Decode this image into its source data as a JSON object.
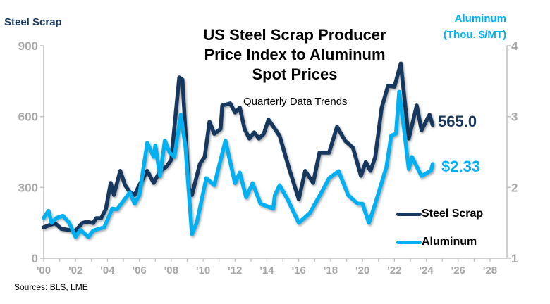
{
  "chart_data": {
    "type": "line",
    "title": "US Steel Scrap Producer Price Index to Aluminum Spot Prices",
    "subtitle": "Quarterly Data Trends",
    "source": "Sources: BLS, LME",
    "y_left": {
      "label": "Steel Scrap",
      "range": [
        0,
        900
      ],
      "ticks": [
        "0",
        "300",
        "600",
        "900"
      ]
    },
    "y_right": {
      "label_line1": "Aluminum",
      "label_line2": "(Thou. $/MT)",
      "range": [
        1,
        4
      ],
      "ticks": [
        "1",
        "2",
        "3",
        "4"
      ]
    },
    "x": {
      "range": [
        2000,
        2028
      ],
      "ticks": [
        "'00",
        "'02",
        "'04",
        "'06",
        "'08",
        "'10",
        "'12",
        "'14",
        "'16",
        "'18",
        "'20",
        "'22",
        "'24",
        "'26",
        "'28"
      ]
    },
    "grid": false,
    "legend": "bottom-right",
    "series": [
      {
        "name": "Steel Scrap",
        "axis": "left",
        "color": "#17375e",
        "end_label": "565.0",
        "points": [
          [
            2000,
            131
          ],
          [
            2000.7,
            149
          ],
          [
            2001.1,
            125
          ],
          [
            2001.7,
            119
          ],
          [
            2002.0,
            116
          ],
          [
            2002.4,
            149
          ],
          [
            2002.7,
            155
          ],
          [
            2003.1,
            149
          ],
          [
            2003.3,
            170
          ],
          [
            2003.6,
            170
          ],
          [
            2003.9,
            209
          ],
          [
            2004.2,
            319
          ],
          [
            2004.4,
            268
          ],
          [
            2004.8,
            370
          ],
          [
            2005.1,
            310
          ],
          [
            2005.4,
            280
          ],
          [
            2005.7,
            268
          ],
          [
            2006.0,
            310
          ],
          [
            2006.5,
            370
          ],
          [
            2006.9,
            319
          ],
          [
            2007.3,
            370
          ],
          [
            2007.7,
            388
          ],
          [
            2008.0,
            417
          ],
          [
            2008.5,
            766
          ],
          [
            2008.7,
            757
          ],
          [
            2009.1,
            298
          ],
          [
            2009.3,
            268
          ],
          [
            2009.8,
            400
          ],
          [
            2010.1,
            429
          ],
          [
            2010.4,
            578
          ],
          [
            2010.7,
            527
          ],
          [
            2011.1,
            548
          ],
          [
            2011.2,
            647
          ],
          [
            2011.7,
            656
          ],
          [
            2012.0,
            617
          ],
          [
            2012.3,
            638
          ],
          [
            2012.6,
            548
          ],
          [
            2012.9,
            507
          ],
          [
            2013.2,
            533
          ],
          [
            2013.5,
            507
          ],
          [
            2013.8,
            527
          ],
          [
            2014.1,
            587
          ],
          [
            2014.5,
            548
          ],
          [
            2014.8,
            518
          ],
          [
            2015.4,
            378
          ],
          [
            2016.0,
            250
          ],
          [
            2016.4,
            370
          ],
          [
            2016.9,
            319
          ],
          [
            2017.3,
            447
          ],
          [
            2017.9,
            447
          ],
          [
            2018.4,
            557
          ],
          [
            2018.9,
            498
          ],
          [
            2019.4,
            468
          ],
          [
            2019.9,
            349
          ],
          [
            2020.2,
            408
          ],
          [
            2020.5,
            370
          ],
          [
            2020.8,
            429
          ],
          [
            2021.2,
            638
          ],
          [
            2021.6,
            730
          ],
          [
            2022.0,
            727
          ],
          [
            2022.4,
            825
          ],
          [
            2022.6,
            697
          ],
          [
            2022.9,
            507
          ],
          [
            2023.4,
            647
          ],
          [
            2023.7,
            542
          ],
          [
            2024.2,
            608
          ],
          [
            2024.4,
            565
          ]
        ]
      },
      {
        "name": "Aluminum",
        "axis": "right",
        "color": "#00b0f0",
        "end_label": "$2.33",
        "points": [
          [
            2000,
            1.57
          ],
          [
            2000.3,
            1.67
          ],
          [
            2000.5,
            1.5
          ],
          [
            2000.8,
            1.57
          ],
          [
            2001.2,
            1.6
          ],
          [
            2001.6,
            1.5
          ],
          [
            2002.0,
            1.3
          ],
          [
            2002.3,
            1.4
          ],
          [
            2002.8,
            1.3
          ],
          [
            2003.1,
            1.39
          ],
          [
            2003.8,
            1.44
          ],
          [
            2004.3,
            1.7
          ],
          [
            2004.6,
            1.69
          ],
          [
            2005.4,
            1.93
          ],
          [
            2005.7,
            1.77
          ],
          [
            2006.0,
            1.89
          ],
          [
            2006.5,
            2.63
          ],
          [
            2006.9,
            2.43
          ],
          [
            2007.0,
            2.59
          ],
          [
            2007.3,
            2.16
          ],
          [
            2007.6,
            2.66
          ],
          [
            2007.9,
            2.49
          ],
          [
            2008.2,
            2.43
          ],
          [
            2008.6,
            3.03
          ],
          [
            2008.9,
            2.56
          ],
          [
            2009.3,
            1.34
          ],
          [
            2009.6,
            1.5
          ],
          [
            2010.2,
            2.13
          ],
          [
            2010.7,
            2.03
          ],
          [
            2011.4,
            2.66
          ],
          [
            2012.0,
            2.06
          ],
          [
            2012.3,
            2.21
          ],
          [
            2012.7,
            1.86
          ],
          [
            2013.1,
            2.06
          ],
          [
            2013.6,
            1.77
          ],
          [
            2014.4,
            1.7
          ],
          [
            2014.5,
            1.89
          ],
          [
            2014.8,
            2.03
          ],
          [
            2015.3,
            1.83
          ],
          [
            2016.0,
            1.5
          ],
          [
            2016.7,
            1.64
          ],
          [
            2017.5,
            1.96
          ],
          [
            2017.9,
            2.13
          ],
          [
            2018.5,
            2.23
          ],
          [
            2019.1,
            1.89
          ],
          [
            2019.7,
            1.77
          ],
          [
            2020.0,
            1.77
          ],
          [
            2020.4,
            1.5
          ],
          [
            2020.8,
            1.77
          ],
          [
            2021.5,
            2.29
          ],
          [
            2021.8,
            2.73
          ],
          [
            2022.1,
            2.76
          ],
          [
            2022.3,
            3.35
          ],
          [
            2022.6,
            2.83
          ],
          [
            2022.9,
            2.26
          ],
          [
            2023.1,
            2.43
          ],
          [
            2023.7,
            2.16
          ],
          [
            2024.3,
            2.24
          ],
          [
            2024.4,
            2.33
          ]
        ]
      }
    ]
  }
}
